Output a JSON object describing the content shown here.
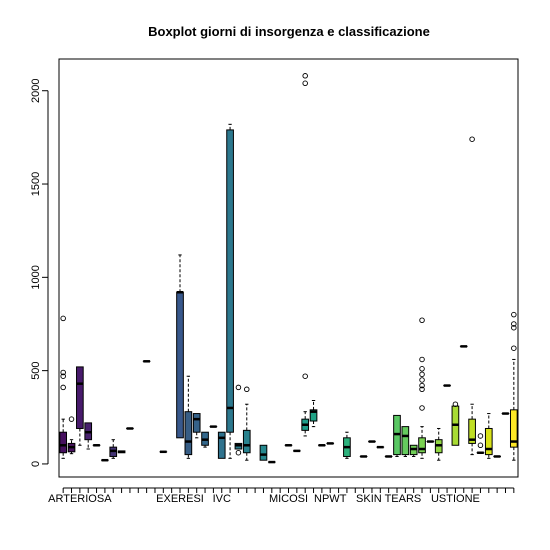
{
  "chart_data": {
    "type": "boxplot",
    "title": "Boxplot giorni di insorgenza e classificazione",
    "xlabel": "",
    "ylabel": "",
    "ylim": [
      -70,
      2170
    ],
    "yticks": [
      0,
      500,
      1000,
      1500,
      2000
    ],
    "xticks": [
      {
        "label": "ARTERIOSA",
        "at": 3
      },
      {
        "label": "EXERESI",
        "at": 15
      },
      {
        "label": "IVC",
        "at": 20
      },
      {
        "label": "MICOSI",
        "at": 28
      },
      {
        "label": "NPWT",
        "at": 33
      },
      {
        "label": "SKIN TEARS",
        "at": 40
      },
      {
        "label": "USTIONE",
        "at": 48
      }
    ],
    "groups": [
      {
        "pos": 1,
        "color": "#46105f",
        "stats": [
          30,
          60,
          100,
          170,
          240
        ],
        "outliers": [
          410,
          470,
          490,
          780
        ]
      },
      {
        "pos": 2,
        "color": "#48135f",
        "stats": [
          55,
          65,
          90,
          110,
          130
        ],
        "outliers": [
          240
        ]
      },
      {
        "pos": 3,
        "color": "#481a6c",
        "stats": [
          100,
          190,
          430,
          520,
          520
        ],
        "outliers": []
      },
      {
        "pos": 4,
        "color": "#47216d",
        "stats": [
          80,
          130,
          170,
          220,
          220
        ],
        "outliers": []
      },
      {
        "pos": 5,
        "color": "#46286f",
        "stats": [
          100,
          100,
          100,
          100,
          100
        ],
        "outliers": []
      },
      {
        "pos": 6,
        "color": "#452e72",
        "stats": [
          20,
          20,
          20,
          20,
          20
        ],
        "outliers": []
      },
      {
        "pos": 7,
        "color": "#443475",
        "stats": [
          30,
          40,
          70,
          90,
          130
        ],
        "outliers": []
      },
      {
        "pos": 8,
        "color": "#423a7b",
        "stats": [
          60,
          60,
          65,
          70,
          70
        ],
        "outliers": []
      },
      {
        "pos": 9,
        "color": "#404079",
        "stats": [
          190,
          190,
          190,
          190,
          190
        ],
        "outliers": []
      },
      {
        "pos": 11,
        "color": "#3e487b",
        "stats": [
          550,
          550,
          550,
          550,
          550
        ],
        "outliers": []
      },
      {
        "pos": 13,
        "color": "#3b4f7e",
        "stats": [
          65,
          65,
          65,
          65,
          65
        ],
        "outliers": []
      },
      {
        "pos": 15,
        "color": "#38588c",
        "stats": [
          140,
          140,
          920,
          920,
          1120
        ],
        "outliers": []
      },
      {
        "pos": 16,
        "color": "#375d85",
        "stats": [
          30,
          50,
          120,
          280,
          470
        ],
        "outliers": []
      },
      {
        "pos": 17,
        "color": "#35628a",
        "stats": [
          140,
          170,
          240,
          270,
          270
        ],
        "outliers": []
      },
      {
        "pos": 18,
        "color": "#33678b",
        "stats": [
          90,
          100,
          130,
          170,
          170
        ],
        "outliers": []
      },
      {
        "pos": 19,
        "color": "#316d8c",
        "stats": [
          200,
          200,
          200,
          200,
          200
        ],
        "outliers": []
      },
      {
        "pos": 20,
        "color": "#2f728d",
        "stats": [
          30,
          30,
          140,
          170,
          170
        ],
        "outliers": []
      },
      {
        "pos": 21,
        "color": "#2c788e",
        "stats": [
          30,
          170,
          300,
          1790,
          1820
        ],
        "outliers": []
      },
      {
        "pos": 22,
        "color": "#2a7d8e",
        "stats": [
          80,
          80,
          100,
          110,
          110
        ],
        "outliers": [
          60,
          410
        ]
      },
      {
        "pos": 23,
        "color": "#28828e",
        "stats": [
          20,
          60,
          100,
          180,
          320
        ],
        "outliers": [
          400
        ]
      },
      {
        "pos": 25,
        "color": "#26888e",
        "stats": [
          20,
          20,
          50,
          100,
          100
        ],
        "outliers": []
      },
      {
        "pos": 26,
        "color": "#238d8d",
        "stats": [
          10,
          10,
          10,
          10,
          10
        ],
        "outliers": []
      },
      {
        "pos": 28,
        "color": "#21918c",
        "stats": [
          100,
          100,
          100,
          100,
          100
        ],
        "outliers": []
      },
      {
        "pos": 29,
        "color": "#1f978b",
        "stats": [
          70,
          70,
          70,
          70,
          70
        ],
        "outliers": []
      },
      {
        "pos": 30,
        "color": "#1f9d8a",
        "stats": [
          150,
          180,
          210,
          240,
          280
        ],
        "outliers": [
          470,
          2040,
          2080
        ]
      },
      {
        "pos": 31,
        "color": "#20a386",
        "stats": [
          200,
          230,
          280,
          290,
          340
        ],
        "outliers": []
      },
      {
        "pos": 32,
        "color": "#22a884",
        "stats": [
          100,
          100,
          100,
          100,
          100
        ],
        "outliers": []
      },
      {
        "pos": 33,
        "color": "#27ad81",
        "stats": [
          110,
          110,
          110,
          110,
          110
        ],
        "outliers": []
      },
      {
        "pos": 35,
        "color": "#2db27d",
        "stats": [
          30,
          40,
          90,
          140,
          170
        ],
        "outliers": []
      },
      {
        "pos": 37,
        "color": "#35b779",
        "stats": [
          40,
          40,
          40,
          40,
          40
        ],
        "outliers": []
      },
      {
        "pos": 38,
        "color": "#3dbc74",
        "stats": [
          120,
          120,
          120,
          120,
          120
        ],
        "outliers": []
      },
      {
        "pos": 39,
        "color": "#46c06f",
        "stats": [
          90,
          90,
          90,
          90,
          90
        ],
        "outliers": []
      },
      {
        "pos": 40,
        "color": "#50c46a",
        "stats": [
          40,
          40,
          40,
          40,
          40
        ],
        "outliers": []
      },
      {
        "pos": 41,
        "color": "#5ac864",
        "stats": [
          40,
          50,
          160,
          260,
          260
        ],
        "outliers": []
      },
      {
        "pos": 42,
        "color": "#65cb5e",
        "stats": [
          40,
          50,
          150,
          200,
          200
        ],
        "outliers": []
      },
      {
        "pos": 43,
        "color": "#70cf57",
        "stats": [
          40,
          50,
          80,
          100,
          100
        ],
        "outliers": []
      },
      {
        "pos": 44,
        "color": "#7ad151",
        "stats": [
          30,
          60,
          80,
          140,
          200
        ],
        "outliers": [
          300,
          400,
          420,
          450,
          480,
          510,
          560,
          770
        ]
      },
      {
        "pos": 45,
        "color": "#86d549",
        "stats": [
          120,
          120,
          120,
          120,
          120
        ],
        "outliers": []
      },
      {
        "pos": 46,
        "color": "#92d742",
        "stats": [
          20,
          60,
          100,
          130,
          190
        ],
        "outliers": []
      },
      {
        "pos": 47,
        "color": "#9dd93b",
        "stats": [
          420,
          420,
          420,
          420,
          420
        ],
        "outliers": []
      },
      {
        "pos": 48,
        "color": "#a8db34",
        "stats": [
          100,
          100,
          210,
          310,
          310
        ],
        "outliers": [
          320
        ]
      },
      {
        "pos": 49,
        "color": "#b5de2b",
        "stats": [
          630,
          630,
          630,
          630,
          630
        ],
        "outliers": []
      },
      {
        "pos": 50,
        "color": "#c0df25",
        "stats": [
          50,
          110,
          130,
          240,
          320
        ],
        "outliers": [
          1740
        ]
      },
      {
        "pos": 51,
        "color": "#cde11d",
        "stats": [
          60,
          60,
          60,
          60,
          60
        ],
        "outliers": [
          100,
          150
        ]
      },
      {
        "pos": 52,
        "color": "#d8e219",
        "stats": [
          30,
          50,
          80,
          190,
          270
        ],
        "outliers": []
      },
      {
        "pos": 53,
        "color": "#e5e419",
        "stats": [
          40,
          40,
          40,
          40,
          40
        ],
        "outliers": []
      },
      {
        "pos": 54,
        "color": "#eee51c",
        "stats": [
          270,
          270,
          270,
          270,
          270
        ],
        "outliers": []
      },
      {
        "pos": 55,
        "color": "#fde725",
        "stats": [
          20,
          90,
          120,
          290,
          560
        ],
        "outliers": [
          620,
          730,
          750,
          800
        ]
      }
    ]
  }
}
